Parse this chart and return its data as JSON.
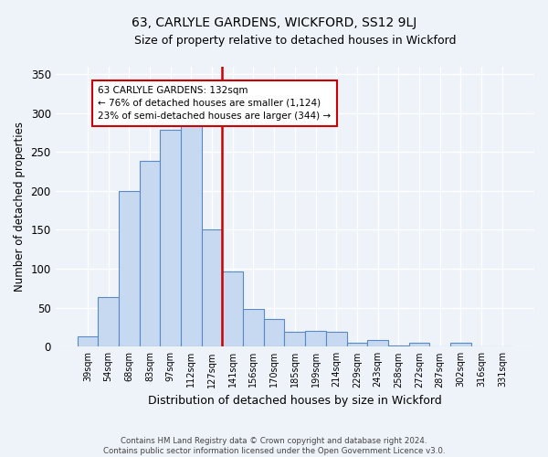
{
  "title": "63, CARLYLE GARDENS, WICKFORD, SS12 9LJ",
  "subtitle": "Size of property relative to detached houses in Wickford",
  "xlabel": "Distribution of detached houses by size in Wickford",
  "ylabel": "Number of detached properties",
  "bar_labels": [
    "39sqm",
    "54sqm",
    "68sqm",
    "83sqm",
    "97sqm",
    "112sqm",
    "127sqm",
    "141sqm",
    "156sqm",
    "170sqm",
    "185sqm",
    "199sqm",
    "214sqm",
    "229sqm",
    "243sqm",
    "258sqm",
    "272sqm",
    "287sqm",
    "302sqm",
    "316sqm",
    "331sqm"
  ],
  "bar_values": [
    13,
    64,
    200,
    238,
    278,
    293,
    150,
    97,
    49,
    35,
    19,
    20,
    19,
    5,
    8,
    2,
    5,
    0,
    5,
    0,
    0
  ],
  "bar_color": "#c6d9f1",
  "bar_edge_color": "#5a8ac6",
  "vline_position": 6.5,
  "vline_color": "#cc0000",
  "ylim": [
    0,
    360
  ],
  "yticks": [
    0,
    50,
    100,
    150,
    200,
    250,
    300,
    350
  ],
  "annotation_title": "63 CARLYLE GARDENS: 132sqm",
  "annotation_line1": "← 76% of detached houses are smaller (1,124)",
  "annotation_line2": "23% of semi-detached houses are larger (344) →",
  "annotation_box_color": "#ffffff",
  "annotation_box_edge": "#cc0000",
  "footer_line1": "Contains HM Land Registry data © Crown copyright and database right 2024.",
  "footer_line2": "Contains public sector information licensed under the Open Government Licence v3.0.",
  "bg_color": "#eef2f9",
  "plot_bg_color": "#eef2f9"
}
